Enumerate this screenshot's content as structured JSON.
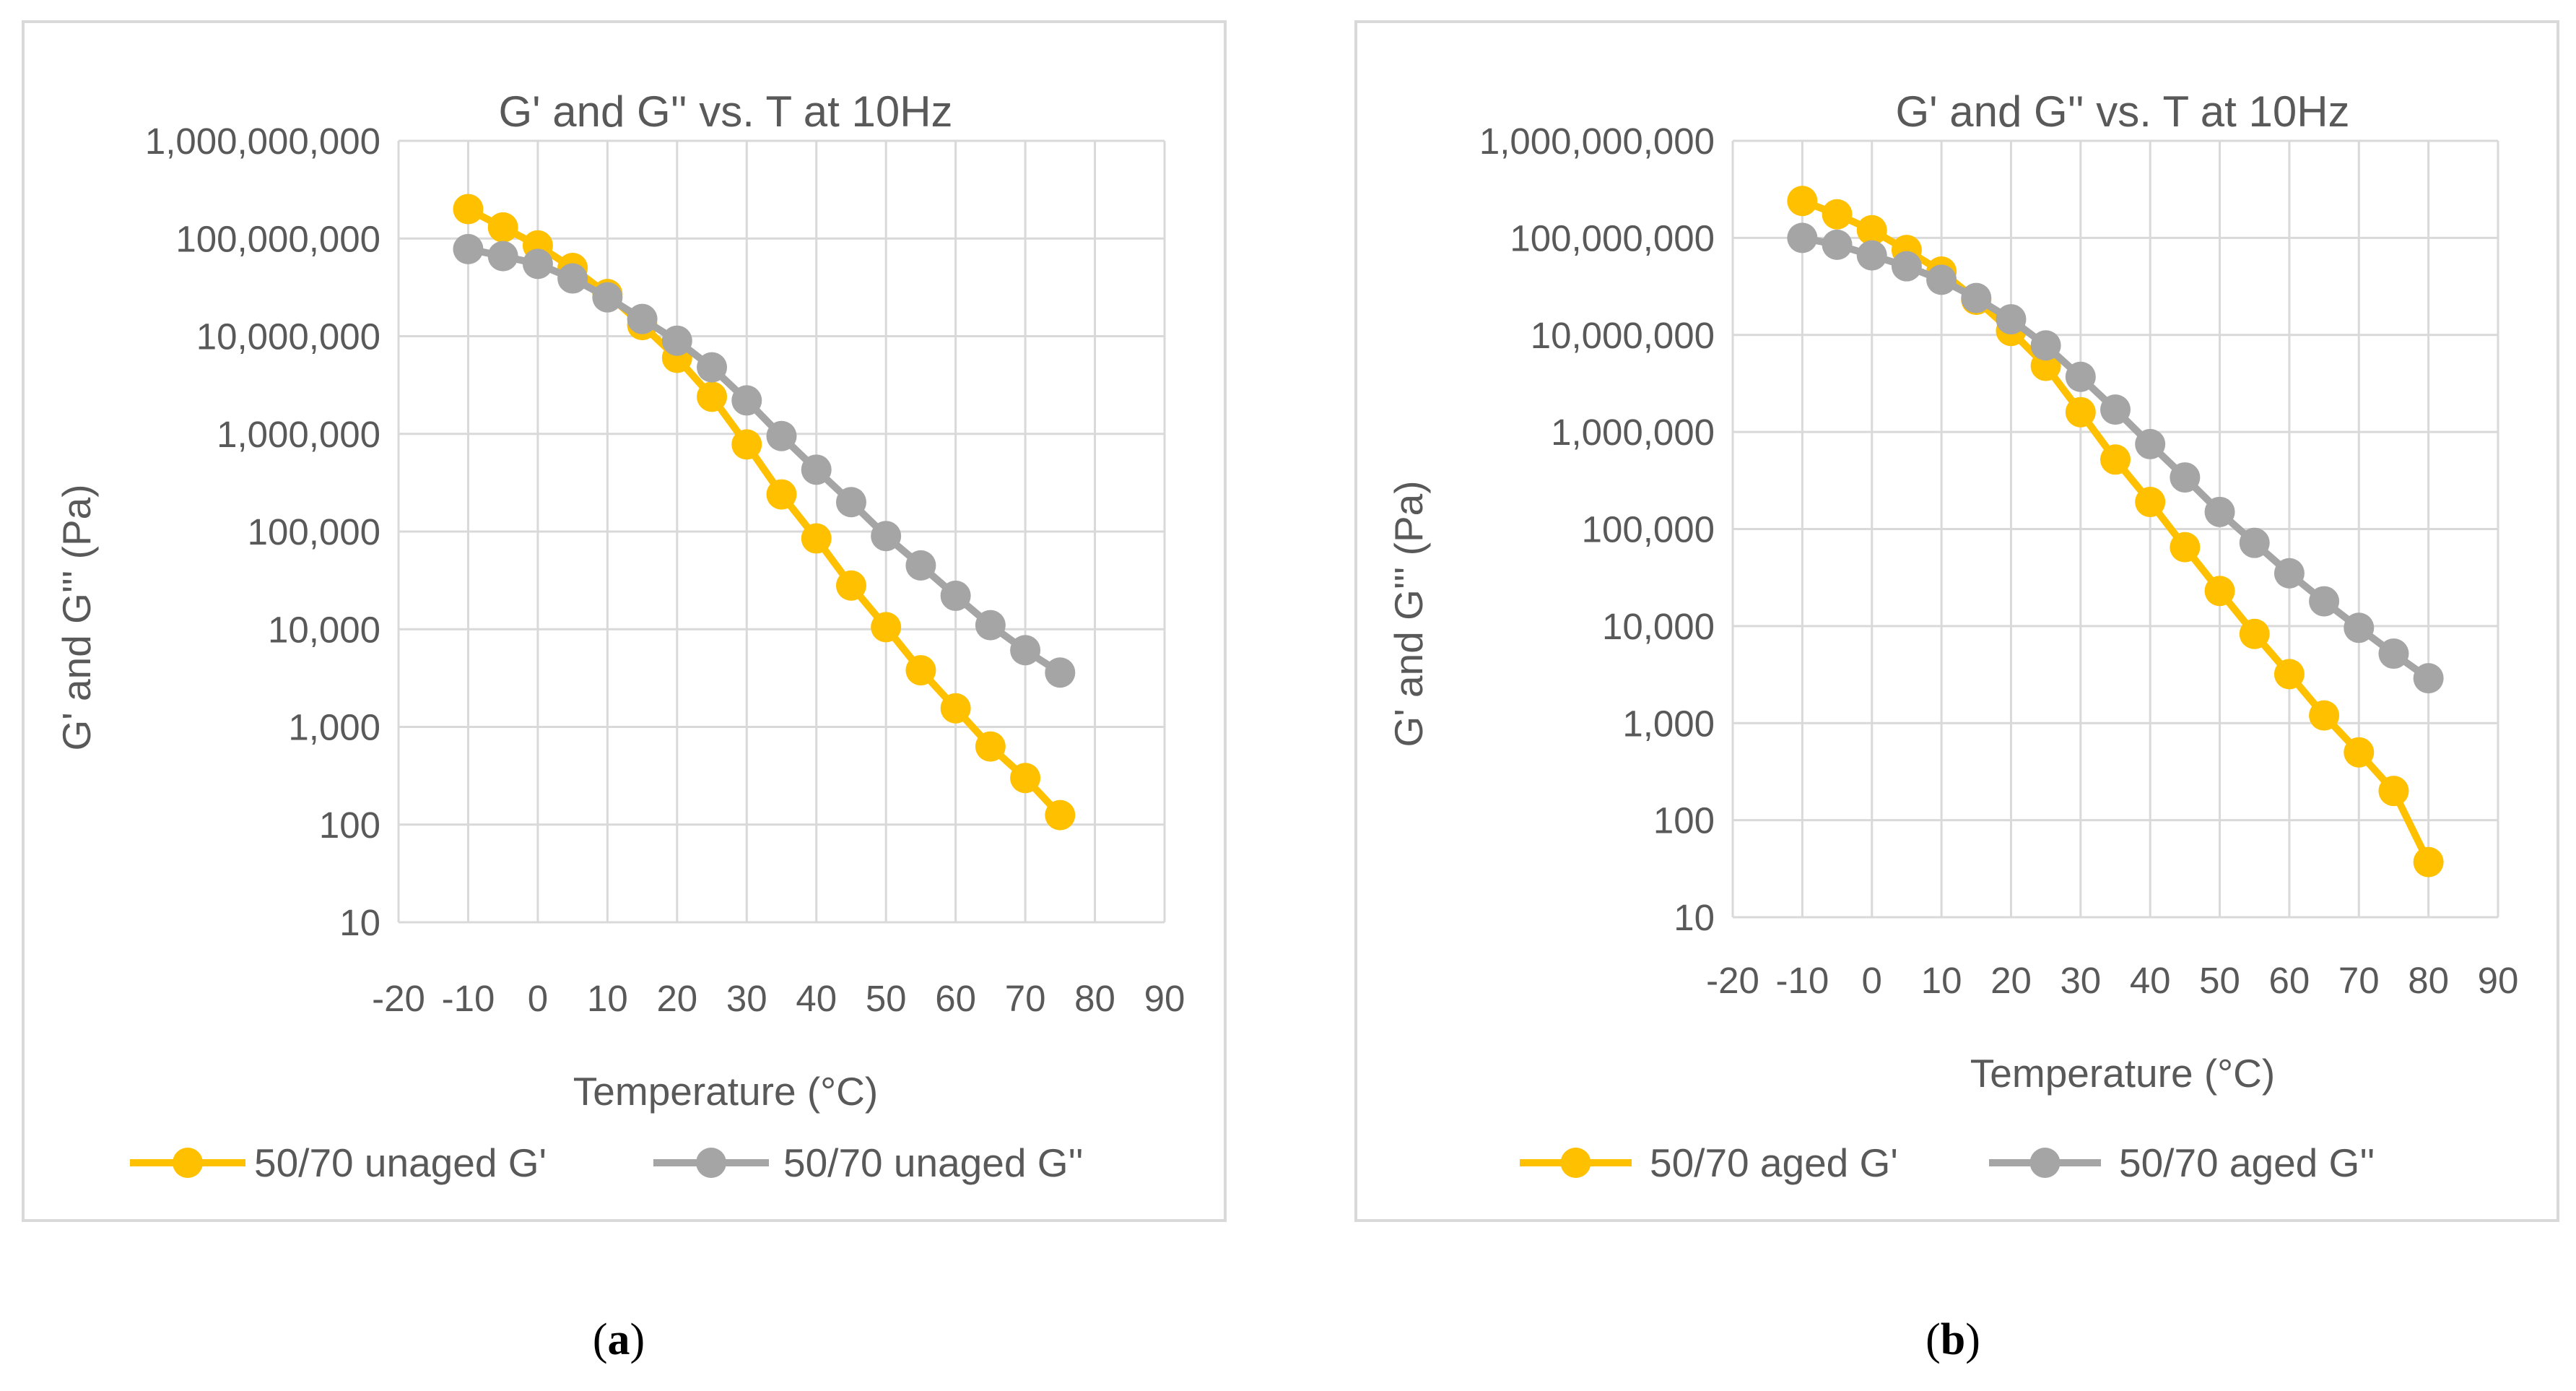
{
  "chart_data": [
    {
      "type": "line",
      "title": "G' and G'' vs. T at 10Hz",
      "xlabel": "Temperature (°C)",
      "ylabel": "G' and G''' (Pa)",
      "yscale": "log",
      "xlim": [
        -20,
        90
      ],
      "ylim": [
        10,
        1000000000
      ],
      "xticks": [
        "-20",
        "-10",
        "0",
        "10",
        "20",
        "30",
        "40",
        "50",
        "60",
        "70",
        "80",
        "90"
      ],
      "yticks": [
        "10",
        "100",
        "1,000",
        "10,000",
        "100,000",
        "1,000,000",
        "10,000,000",
        "100,000,000",
        "1,000,000,000"
      ],
      "caption_letter": "a",
      "caption_open": "(",
      "caption_close": ")",
      "series": [
        {
          "name": "50/70 unaged G'",
          "color": "#FFC000",
          "x": [
            -10,
            -5,
            0,
            5,
            10,
            15,
            20,
            25,
            30,
            35,
            40,
            45,
            50,
            55,
            60,
            65,
            70,
            75
          ],
          "y": [
            200000000,
            130000000,
            85000000,
            50000000,
            27000000,
            13000000,
            6000000,
            2400000,
            780000,
            240000,
            85000,
            28000,
            10500,
            3800,
            1550,
            630,
            300,
            125
          ]
        },
        {
          "name": "50/70 unaged G''",
          "color": "#A5A5A5",
          "x": [
            -10,
            -5,
            0,
            5,
            10,
            15,
            20,
            25,
            30,
            35,
            40,
            45,
            50,
            55,
            60,
            65,
            70,
            75
          ],
          "y": [
            78000000,
            66000000,
            55000000,
            39000000,
            25000000,
            15000000,
            9000000,
            4800000,
            2200000,
            950000,
            430000,
            200000,
            90000,
            45000,
            22000,
            11000,
            6100,
            3600
          ]
        }
      ]
    },
    {
      "type": "line",
      "title": "G' and G'' vs. T at 10Hz",
      "xlabel": "Temperature (°C)",
      "ylabel": "G' and G''' (Pa)",
      "yscale": "log",
      "xlim": [
        -20,
        90
      ],
      "ylim": [
        10,
        1000000000
      ],
      "xticks": [
        "-20",
        "-10",
        "0",
        "10",
        "20",
        "30",
        "40",
        "50",
        "60",
        "70",
        "80",
        "90"
      ],
      "yticks": [
        "10",
        "100",
        "1,000",
        "10,000",
        "100,000",
        "1,000,000",
        "10,000,000",
        "100,000,000",
        "1,000,000,000"
      ],
      "caption_letter": "b",
      "caption_open": "(",
      "caption_close": ")",
      "series": [
        {
          "name": "50/70 aged G'",
          "color": "#FFC000",
          "x": [
            -10,
            -5,
            0,
            5,
            10,
            15,
            20,
            25,
            30,
            35,
            40,
            45,
            50,
            55,
            60,
            65,
            70,
            75,
            80
          ],
          "y": [
            240000000,
            175000000,
            120000000,
            75000000,
            45000000,
            23000000,
            11000000,
            4800000,
            1600000,
            520000,
            190000,
            65000,
            23000,
            8300,
            3200,
            1200,
            500,
            200,
            37
          ]
        },
        {
          "name": "50/70 aged G''",
          "color": "#A5A5A5",
          "x": [
            -10,
            -5,
            0,
            5,
            10,
            15,
            20,
            25,
            30,
            35,
            40,
            45,
            50,
            55,
            60,
            65,
            70,
            75,
            80
          ],
          "y": [
            100000000,
            85000000,
            66000000,
            51000000,
            37000000,
            24000000,
            14500000,
            7800000,
            3700000,
            1700000,
            750000,
            340000,
            150000,
            72000,
            35000,
            18000,
            9600,
            5200,
            2900
          ]
        }
      ]
    }
  ]
}
